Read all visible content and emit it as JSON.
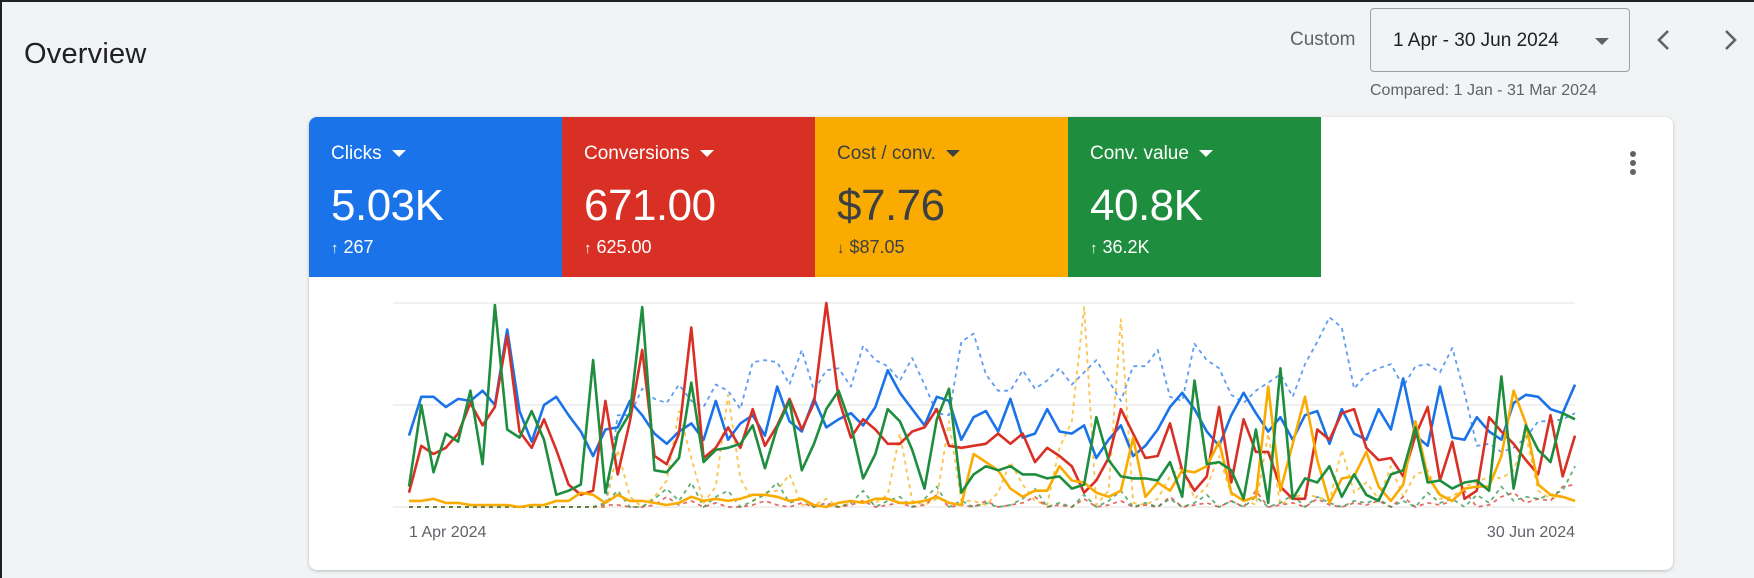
{
  "header": {
    "title": "Overview",
    "range_label": "Custom",
    "date_range": "1 Apr - 30 Jun 2024",
    "compared": "Compared: 1 Jan - 31 Mar 2024"
  },
  "metrics": [
    {
      "label": "Clicks",
      "value": "5.03K",
      "change": "267",
      "direction": "up",
      "color": "#1a73e8",
      "text_color": "#ffffff"
    },
    {
      "label": "Conversions",
      "value": "671.00",
      "change": "625.00",
      "direction": "up",
      "color": "#d93025",
      "text_color": "#ffffff"
    },
    {
      "label": "Cost / conv.",
      "value": "$7.76",
      "change": "$87.05",
      "direction": "down",
      "color": "#f9ab00",
      "text_color": "#3c4043"
    },
    {
      "label": "Conv. value",
      "value": "40.8K",
      "change": "36.2K",
      "direction": "up",
      "color": "#1e8e3e",
      "text_color": "#ffffff"
    }
  ],
  "icons": {
    "previous": "chevron-left-icon",
    "next": "chevron-right-icon",
    "more": "more-vert-icon",
    "dropdown": "arrow-drop-down-icon"
  },
  "chart_data": {
    "type": "line",
    "x_start_label": "1 Apr 2024",
    "x_end_label": "30 Jun 2024",
    "y_range": [
      0,
      100
    ],
    "grid": true,
    "series": [
      {
        "color": "#1a73e8",
        "dashed": false,
        "values": [
          35,
          54,
          54,
          49,
          53,
          52,
          57,
          50,
          87,
          47,
          32,
          50,
          54,
          45,
          37,
          25,
          38,
          39,
          52,
          45,
          36,
          31,
          37,
          41,
          33,
          52,
          33,
          41,
          45,
          35,
          59,
          42,
          37,
          53,
          39,
          43,
          46,
          40,
          49,
          67,
          56,
          48,
          40,
          54,
          52,
          33,
          44,
          47,
          37,
          53,
          34,
          36,
          48,
          37,
          36,
          40,
          24,
          33,
          40,
          25,
          30,
          38,
          49,
          56,
          48,
          37,
          30,
          45,
          56,
          46,
          37,
          44,
          33,
          45,
          47,
          31,
          48,
          36,
          33,
          48,
          38,
          63,
          35,
          30,
          59,
          34,
          33,
          44,
          37,
          33,
          51,
          55,
          54,
          48,
          46,
          60
        ]
      },
      {
        "color": "#d93025",
        "dashed": false,
        "values": [
          7,
          30,
          26,
          29,
          36,
          51,
          40,
          49,
          84,
          37,
          29,
          43,
          28,
          11,
          6,
          8,
          52,
          16,
          42,
          77,
          25,
          21,
          36,
          88,
          24,
          29,
          39,
          29,
          48,
          30,
          40,
          53,
          38,
          51,
          100,
          53,
          34,
          43,
          38,
          31,
          31,
          37,
          39,
          48,
          30,
          29,
          30,
          31,
          36,
          31,
          36,
          22,
          29,
          25,
          20,
          7,
          13,
          24,
          48,
          36,
          24,
          25,
          41,
          18,
          8,
          15,
          49,
          12,
          43,
          27,
          27,
          10,
          4,
          4,
          38,
          33,
          46,
          48,
          29,
          23,
          24,
          15,
          35,
          49,
          13,
          32,
          4,
          8,
          44,
          37,
          31,
          23,
          16,
          45,
          15,
          35
        ]
      },
      {
        "color": "#f9ab00",
        "dashed": false,
        "values": [
          3,
          3,
          4,
          2,
          2,
          1,
          1,
          1,
          1,
          0,
          1,
          1,
          3,
          3,
          7,
          6,
          2,
          6,
          3,
          3,
          2,
          1,
          2,
          5,
          3,
          4,
          3,
          4,
          6,
          6,
          5,
          3,
          4,
          1,
          0,
          2,
          3,
          2,
          4,
          4,
          2,
          2,
          3,
          5,
          2,
          1,
          26,
          22,
          18,
          9,
          5,
          8,
          8,
          20,
          13,
          12,
          7,
          5,
          8,
          34,
          5,
          12,
          8,
          18,
          17,
          20,
          32,
          7,
          3,
          5,
          59,
          8,
          31,
          54,
          23,
          2,
          14,
          15,
          27,
          10,
          3,
          11,
          42,
          15,
          6,
          3,
          9,
          10,
          10,
          25,
          57,
          41,
          11,
          6,
          5,
          3
        ]
      },
      {
        "color": "#1e8e3e",
        "dashed": false,
        "values": [
          10,
          50,
          17,
          36,
          32,
          57,
          21,
          99,
          38,
          34,
          47,
          33,
          6,
          8,
          11,
          72,
          7,
          36,
          46,
          98,
          18,
          17,
          24,
          61,
          22,
          28,
          29,
          31,
          40,
          19,
          39,
          52,
          18,
          31,
          48,
          57,
          40,
          14,
          26,
          48,
          42,
          28,
          9,
          43,
          58,
          7,
          16,
          20,
          18,
          20,
          16,
          16,
          14,
          15,
          9,
          11,
          44,
          23,
          15,
          14,
          14,
          13,
          22,
          5,
          62,
          21,
          22,
          18,
          4,
          38,
          2,
          68,
          4,
          14,
          12,
          20,
          5,
          16,
          6,
          3,
          16,
          18,
          39,
          12,
          13,
          9,
          12,
          13,
          8,
          64,
          9,
          40,
          28,
          22,
          46,
          43
        ]
      },
      {
        "color": "#1a73e8",
        "dashed": true,
        "values": [
          0,
          0,
          0,
          0,
          0,
          0,
          0,
          0,
          0,
          0,
          0,
          0,
          0,
          0,
          0,
          0,
          0,
          45,
          45,
          58,
          53,
          51,
          60,
          52,
          49,
          60,
          57,
          48,
          71,
          72,
          71,
          60,
          77,
          57,
          67,
          68,
          59,
          79,
          72,
          69,
          62,
          73,
          60,
          46,
          45,
          81,
          85,
          65,
          57,
          57,
          67,
          58,
          62,
          68,
          60,
          66,
          72,
          62,
          52,
          69,
          69,
          77,
          54,
          52,
          80,
          72,
          68,
          55,
          51,
          57,
          61,
          65,
          54,
          70,
          81,
          93,
          88,
          58,
          65,
          68,
          70,
          59,
          69,
          70,
          66,
          78,
          56,
          30,
          31,
          27,
          29,
          34,
          42,
          42,
          43,
          46
        ]
      },
      {
        "color": "#f9ab00",
        "dashed": true,
        "values": [
          0,
          0,
          0,
          0,
          0,
          0,
          0,
          0,
          0,
          0,
          0,
          0,
          0,
          0,
          0,
          0,
          0,
          28,
          5,
          0,
          5,
          13,
          47,
          24,
          2,
          10,
          55,
          14,
          3,
          7,
          8,
          16,
          1,
          1,
          4,
          0,
          2,
          3,
          2,
          6,
          36,
          3,
          1,
          4,
          42,
          3,
          3,
          1,
          7,
          22,
          11,
          3,
          1,
          29,
          42,
          98,
          1,
          8,
          92,
          2,
          1,
          4,
          15,
          20,
          4,
          10,
          25,
          6,
          4,
          1,
          36,
          1,
          5,
          6,
          5,
          3,
          28,
          7,
          12,
          4,
          20,
          5,
          16,
          18,
          4,
          5,
          10,
          12,
          15,
          14,
          18,
          35,
          8,
          4,
          5,
          3
        ]
      },
      {
        "color": "#d93025",
        "dashed": true,
        "values": [
          0,
          0,
          0,
          0,
          0,
          0,
          0,
          0,
          0,
          0,
          0,
          0,
          0,
          0,
          0,
          0,
          1,
          1,
          0,
          0,
          1,
          5,
          1,
          3,
          0,
          2,
          0,
          0,
          1,
          3,
          1,
          0,
          2,
          0,
          2,
          0,
          1,
          3,
          0,
          1,
          2,
          0,
          1,
          6,
          0,
          1,
          0,
          3,
          0,
          1,
          2,
          5,
          0,
          1,
          0,
          4,
          0,
          1,
          3,
          0,
          1,
          0,
          5,
          0,
          1,
          2,
          0,
          3,
          0,
          8,
          0,
          1,
          2,
          0,
          4,
          1,
          0,
          2,
          1,
          3,
          0,
          5,
          0,
          2,
          1,
          3,
          8,
          0,
          1,
          5,
          7,
          2,
          4,
          3,
          10,
          11
        ]
      },
      {
        "color": "#1e8e3e",
        "dashed": true,
        "values": [
          0,
          0,
          0,
          0,
          0,
          0,
          0,
          0,
          0,
          0,
          0,
          0,
          0,
          0,
          0,
          0,
          2,
          8,
          0,
          0,
          4,
          9,
          3,
          12,
          0,
          5,
          8,
          0,
          3,
          6,
          12,
          2,
          4,
          0,
          1,
          0,
          2,
          8,
          0,
          3,
          5,
          0,
          4,
          10,
          0,
          3,
          0,
          2,
          0,
          1,
          4,
          9,
          0,
          2,
          0,
          6,
          0,
          3,
          8,
          0,
          2,
          0,
          4,
          0,
          2,
          6,
          0,
          3,
          0,
          5,
          0,
          2,
          6,
          0,
          5,
          2,
          0,
          3,
          2,
          4,
          0,
          3,
          0,
          7,
          2,
          4,
          0,
          6,
          2,
          10,
          3,
          5,
          4,
          6,
          8,
          20
        ]
      }
    ]
  }
}
